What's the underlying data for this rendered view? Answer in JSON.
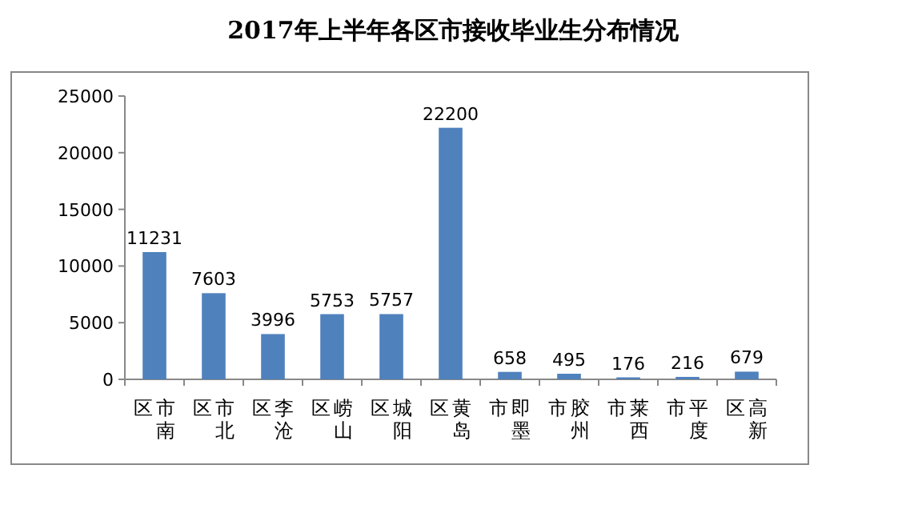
{
  "chart_data": {
    "type": "bar",
    "title": "2017年上半年各区市接收毕业生分布情况",
    "categories": [
      "市南区",
      "市北区",
      "李沧区",
      "崂山区",
      "城阳区",
      "黄岛区",
      "即墨市",
      "胶州市",
      "莱西市",
      "平度市",
      "高新区"
    ],
    "values": [
      11231,
      7603,
      3996,
      5753,
      5757,
      22200,
      658,
      495,
      176,
      216,
      679
    ],
    "color": "#4f81bd",
    "ylim": [
      0,
      25000
    ],
    "yticks": [
      0,
      5000,
      10000,
      15000,
      20000,
      25000
    ],
    "grid": false,
    "data_labels": true
  }
}
